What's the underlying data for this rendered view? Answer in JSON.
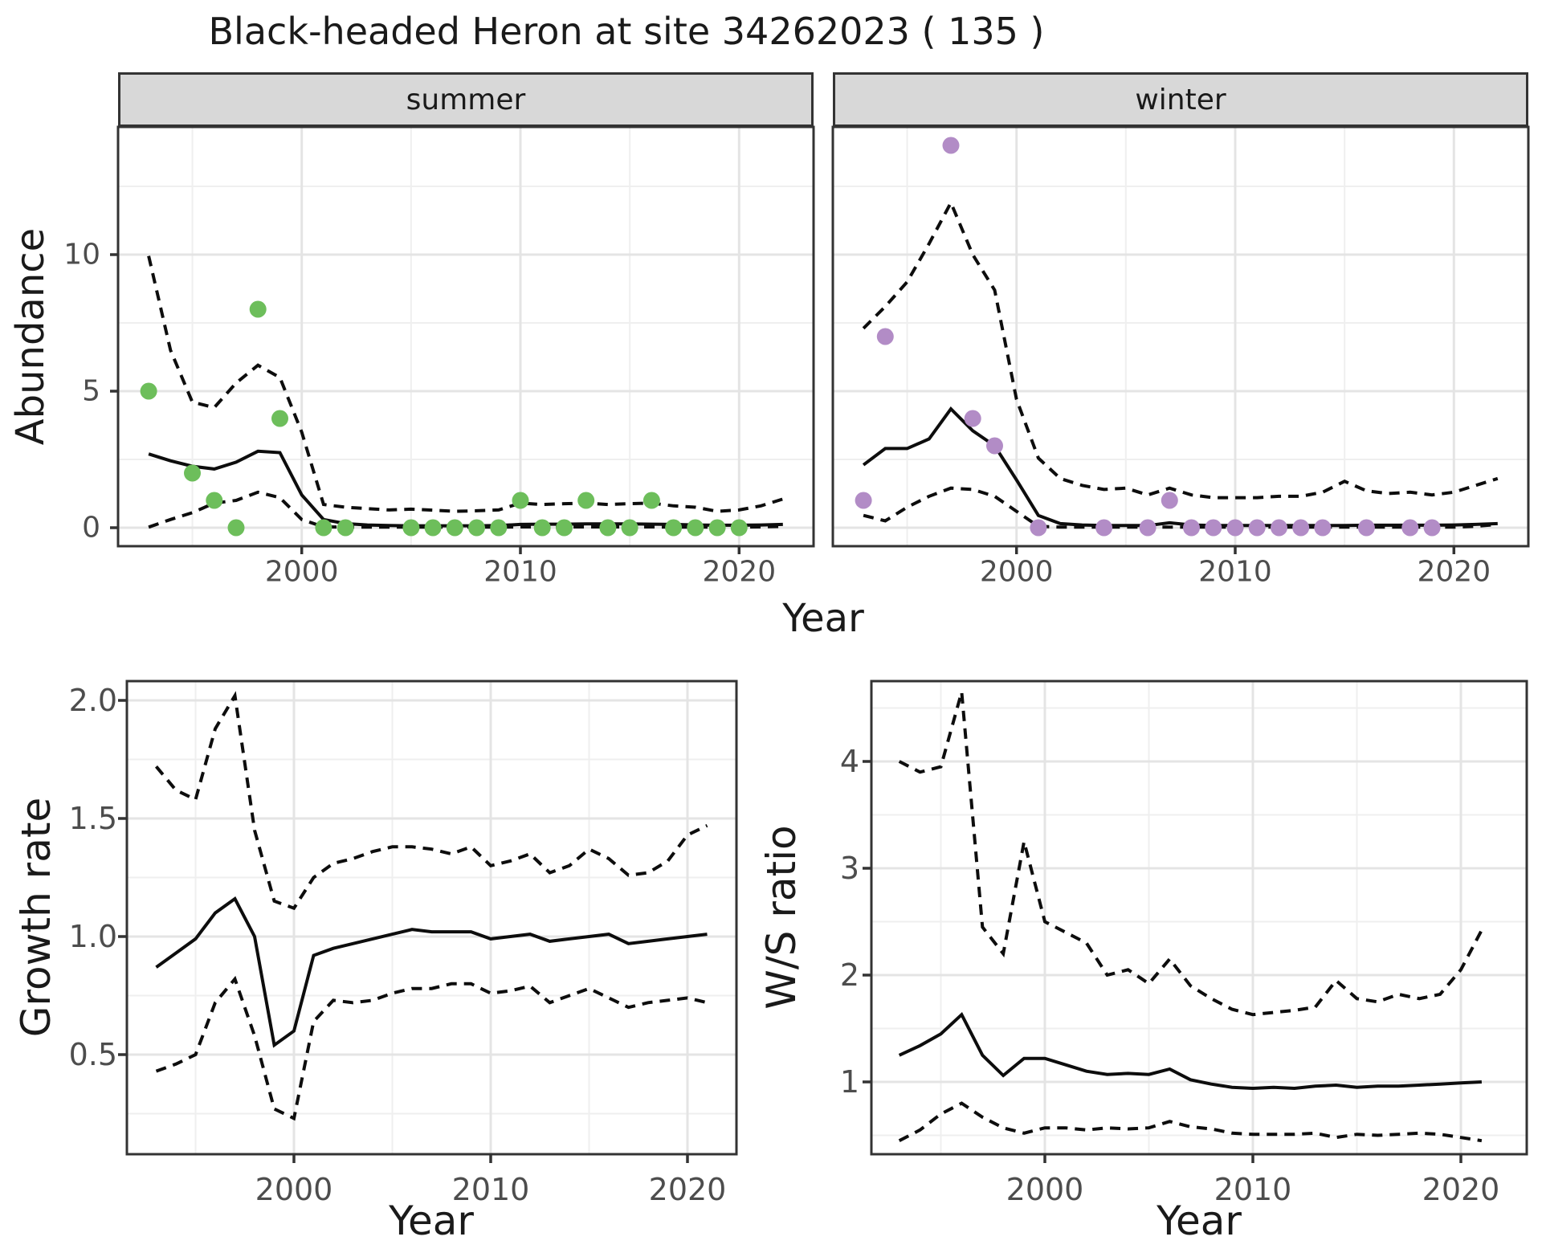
{
  "title": "Black-headed Heron at site 34262023 ( 135 )",
  "colors": {
    "summer_points": "#6DBE5B",
    "winter_points": "#B28CC6",
    "line": "#0d0d0d",
    "grid_major": "#e4e4e4",
    "grid_minor": "#efefef",
    "panel_border": "#333333",
    "strip_background": "#d8d8d8",
    "tick_label": "#4d4d4d",
    "tick_mark": "#333333",
    "text": "#1a1a1a",
    "panel_background": "#ffffff"
  },
  "chart_data": [
    {
      "id": "abundance-summer",
      "type": "line",
      "facet_label": "summer",
      "xlabel": "Year",
      "ylabel": "Abundance",
      "xlim": [
        1991.6,
        2023.4
      ],
      "ylim": [
        -0.7,
        14.7
      ],
      "x_ticks": {
        "major": [
          2000,
          2010,
          2020
        ],
        "minor": [
          1995,
          2005,
          2015
        ],
        "labels": [
          "2000",
          "2010",
          "2020"
        ]
      },
      "y_ticks": {
        "major": [
          0,
          5,
          10
        ],
        "minor": [
          2.5,
          7.5,
          12.5
        ],
        "labels": [
          "0",
          "5",
          "10"
        ]
      },
      "grid": true,
      "legend": "none",
      "series": [
        {
          "name": "fitted-abundance",
          "style": "solid",
          "x": [
            1993,
            1994,
            1995,
            1996,
            1997,
            1998,
            1999,
            2000,
            2001,
            2002,
            2003,
            2004,
            2005,
            2006,
            2007,
            2008,
            2009,
            2010,
            2011,
            2012,
            2013,
            2014,
            2015,
            2016,
            2017,
            2018,
            2019,
            2020,
            2021,
            2022
          ],
          "y": [
            2.7,
            2.45,
            2.25,
            2.15,
            2.4,
            2.8,
            2.75,
            1.2,
            0.3,
            0.15,
            0.1,
            0.08,
            0.07,
            0.07,
            0.07,
            0.07,
            0.08,
            0.12,
            0.13,
            0.13,
            0.14,
            0.14,
            0.14,
            0.13,
            0.12,
            0.1,
            0.09,
            0.09,
            0.1,
            0.12
          ]
        },
        {
          "name": "upper-credible-interval",
          "style": "dashed",
          "x": [
            1993,
            1994,
            1995,
            1996,
            1997,
            1998,
            1999,
            2000,
            2001,
            2002,
            2003,
            2004,
            2005,
            2006,
            2007,
            2008,
            2009,
            2010,
            2011,
            2012,
            2013,
            2014,
            2015,
            2016,
            2017,
            2018,
            2019,
            2020,
            2021,
            2022
          ],
          "y": [
            9.95,
            6.5,
            4.6,
            4.4,
            5.3,
            5.95,
            5.5,
            3.5,
            0.85,
            0.75,
            0.7,
            0.65,
            0.68,
            0.64,
            0.6,
            0.62,
            0.65,
            0.9,
            0.85,
            0.88,
            0.9,
            0.85,
            0.88,
            0.9,
            0.8,
            0.75,
            0.6,
            0.65,
            0.8,
            1.05
          ]
        },
        {
          "name": "lower-credible-interval",
          "style": "dashed",
          "x": [
            1993,
            1994,
            1995,
            1996,
            1997,
            1998,
            1999,
            2000,
            2001,
            2002,
            2003,
            2004,
            2005,
            2006,
            2007,
            2008,
            2009,
            2010,
            2011,
            2012,
            2013,
            2014,
            2015,
            2016,
            2017,
            2018,
            2019,
            2020,
            2021,
            2022
          ],
          "y": [
            0.02,
            0.3,
            0.55,
            0.9,
            1.0,
            1.3,
            1.1,
            0.3,
            0.03,
            0.02,
            0.02,
            0.02,
            0.02,
            0.02,
            0.02,
            0.02,
            0.02,
            0.03,
            0.03,
            0.03,
            0.03,
            0.03,
            0.03,
            0.03,
            0.02,
            0.02,
            0.02,
            0.02,
            0.03,
            0.05
          ]
        }
      ],
      "points": {
        "name": "observed-counts-summer",
        "color": "#6DBE5B",
        "x": [
          1993,
          1995,
          1996,
          1997,
          1998,
          1999,
          2001,
          2002,
          2005,
          2006,
          2007,
          2008,
          2009,
          2010,
          2011,
          2012,
          2013,
          2014,
          2015,
          2016,
          2017,
          2018,
          2019,
          2020
        ],
        "y": [
          5,
          2,
          1,
          0,
          8,
          4,
          0,
          0,
          0,
          0,
          0,
          0,
          0,
          1,
          0,
          0,
          1,
          0,
          0,
          1,
          0,
          0,
          0,
          0
        ]
      }
    },
    {
      "id": "abundance-winter",
      "type": "line",
      "facet_label": "winter",
      "xlabel": "Year",
      "ylabel": "Abundance",
      "xlim": [
        1991.6,
        2023.4
      ],
      "ylim": [
        -0.7,
        14.7
      ],
      "x_ticks": {
        "major": [
          2000,
          2010,
          2020
        ],
        "minor": [
          1995,
          2005,
          2015
        ],
        "labels": [
          "2000",
          "2010",
          "2020"
        ]
      },
      "y_ticks": {
        "major": [
          0,
          5,
          10
        ],
        "minor": [
          2.5,
          7.5,
          12.5
        ],
        "labels": []
      },
      "grid": true,
      "legend": "none",
      "series": [
        {
          "name": "fitted-abundance",
          "style": "solid",
          "x": [
            1993,
            1994,
            1995,
            1996,
            1997,
            1998,
            1999,
            2000,
            2001,
            2002,
            2003,
            2004,
            2005,
            2006,
            2007,
            2008,
            2009,
            2010,
            2011,
            2012,
            2013,
            2014,
            2015,
            2016,
            2017,
            2018,
            2019,
            2020,
            2021,
            2022
          ],
          "y": [
            2.3,
            2.9,
            2.9,
            3.25,
            4.35,
            3.55,
            3.0,
            1.75,
            0.45,
            0.15,
            0.1,
            0.08,
            0.08,
            0.08,
            0.18,
            0.1,
            0.08,
            0.08,
            0.08,
            0.08,
            0.08,
            0.08,
            0.08,
            0.09,
            0.09,
            0.09,
            0.09,
            0.1,
            0.12,
            0.15
          ]
        },
        {
          "name": "upper-credible-interval",
          "style": "dashed",
          "x": [
            1993,
            1994,
            1995,
            1996,
            1997,
            1998,
            1999,
            2000,
            2001,
            2002,
            2003,
            2004,
            2005,
            2006,
            2007,
            2008,
            2009,
            2010,
            2011,
            2012,
            2013,
            2014,
            2015,
            2016,
            2017,
            2018,
            2019,
            2020,
            2021,
            2022
          ],
          "y": [
            7.3,
            8.1,
            9.0,
            10.4,
            11.9,
            10.0,
            8.7,
            4.7,
            2.55,
            1.8,
            1.55,
            1.4,
            1.45,
            1.2,
            1.45,
            1.2,
            1.1,
            1.1,
            1.1,
            1.15,
            1.15,
            1.3,
            1.7,
            1.35,
            1.25,
            1.3,
            1.2,
            1.3,
            1.55,
            1.8
          ]
        },
        {
          "name": "lower-credible-interval",
          "style": "dashed",
          "x": [
            1993,
            1994,
            1995,
            1996,
            1997,
            1998,
            1999,
            2000,
            2001,
            2002,
            2003,
            2004,
            2005,
            2006,
            2007,
            2008,
            2009,
            2010,
            2011,
            2012,
            2013,
            2014,
            2015,
            2016,
            2017,
            2018,
            2019,
            2020,
            2021,
            2022
          ],
          "y": [
            0.45,
            0.25,
            0.75,
            1.15,
            1.45,
            1.4,
            1.15,
            0.6,
            0.05,
            0.02,
            0.02,
            0.02,
            0.02,
            0.02,
            0.02,
            0.02,
            0.02,
            0.02,
            0.02,
            0.02,
            0.02,
            0.02,
            0.02,
            0.02,
            0.02,
            0.02,
            0.02,
            0.02,
            0.05,
            0.12
          ]
        }
      ],
      "points": {
        "name": "observed-counts-winter",
        "color": "#B28CC6",
        "x": [
          1993,
          1994,
          1997,
          1998,
          1999,
          2001,
          2004,
          2006,
          2007,
          2008,
          2009,
          2010,
          2011,
          2012,
          2013,
          2014,
          2016,
          2018,
          2019
        ],
        "y": [
          1,
          7,
          14,
          4,
          3,
          0,
          0,
          0,
          1,
          0,
          0,
          0,
          0,
          0,
          0,
          0,
          0,
          0,
          0
        ]
      }
    },
    {
      "id": "growth-rate",
      "type": "line",
      "facet_label": "",
      "xlabel": "Year",
      "ylabel": "Growth rate",
      "xlim": [
        1991.5,
        2022.5
      ],
      "ylim": [
        0.08,
        2.08
      ],
      "x_ticks": {
        "major": [
          2000,
          2010,
          2020
        ],
        "minor": [
          1995,
          2005,
          2015
        ],
        "labels": [
          "2000",
          "2010",
          "2020"
        ]
      },
      "y_ticks": {
        "major": [
          0.5,
          1.0,
          1.5,
          2.0
        ],
        "minor": [
          0.25,
          0.75,
          1.25,
          1.75
        ],
        "labels": [
          "0.5",
          "1.0",
          "1.5",
          "2.0"
        ]
      },
      "grid": true,
      "legend": "none",
      "series": [
        {
          "name": "growth-rate-estimate",
          "style": "solid",
          "x": [
            1993,
            1994,
            1995,
            1996,
            1997,
            1998,
            1999,
            2000,
            2001,
            2002,
            2003,
            2004,
            2005,
            2006,
            2007,
            2008,
            2009,
            2010,
            2011,
            2012,
            2013,
            2014,
            2015,
            2016,
            2017,
            2018,
            2019,
            2020,
            2021
          ],
          "y": [
            0.87,
            0.93,
            0.99,
            1.1,
            1.16,
            1.0,
            0.54,
            0.6,
            0.92,
            0.95,
            0.97,
            0.99,
            1.01,
            1.03,
            1.02,
            1.02,
            1.02,
            0.99,
            1.0,
            1.01,
            0.98,
            0.99,
            1.0,
            1.01,
            0.97,
            0.98,
            0.99,
            1.0,
            1.01
          ]
        },
        {
          "name": "upper-credible-interval",
          "style": "dashed",
          "x": [
            1993,
            1994,
            1995,
            1996,
            1997,
            1998,
            1999,
            2000,
            2001,
            2002,
            2003,
            2004,
            2005,
            2006,
            2007,
            2008,
            2009,
            2010,
            2011,
            2012,
            2013,
            2014,
            2015,
            2016,
            2017,
            2018,
            2019,
            2020,
            2021
          ],
          "y": [
            1.72,
            1.62,
            1.58,
            1.88,
            2.02,
            1.45,
            1.15,
            1.12,
            1.25,
            1.31,
            1.33,
            1.36,
            1.38,
            1.38,
            1.37,
            1.35,
            1.38,
            1.3,
            1.32,
            1.35,
            1.27,
            1.3,
            1.37,
            1.33,
            1.26,
            1.27,
            1.32,
            1.43,
            1.47
          ]
        },
        {
          "name": "lower-credible-interval",
          "style": "dashed",
          "x": [
            1993,
            1994,
            1995,
            1996,
            1997,
            1998,
            1999,
            2000,
            2001,
            2002,
            2003,
            2004,
            2005,
            2006,
            2007,
            2008,
            2009,
            2010,
            2011,
            2012,
            2013,
            2014,
            2015,
            2016,
            2017,
            2018,
            2019,
            2020,
            2021
          ],
          "y": [
            0.43,
            0.46,
            0.5,
            0.72,
            0.82,
            0.58,
            0.27,
            0.23,
            0.64,
            0.73,
            0.72,
            0.73,
            0.76,
            0.78,
            0.78,
            0.8,
            0.8,
            0.76,
            0.77,
            0.79,
            0.72,
            0.75,
            0.78,
            0.74,
            0.7,
            0.72,
            0.73,
            0.74,
            0.72
          ]
        }
      ],
      "points": null
    },
    {
      "id": "ws-ratio",
      "type": "line",
      "facet_label": "",
      "xlabel": "Year",
      "ylabel": "W/S ratio",
      "xlim": [
        1991.7,
        2023.0
      ],
      "ylim": [
        0.33,
        4.75
      ],
      "x_ticks": {
        "major": [
          2000,
          2010,
          2020
        ],
        "minor": [
          1995,
          2005,
          2015
        ],
        "labels": [
          "2000",
          "2010",
          "2020"
        ]
      },
      "y_ticks": {
        "major": [
          1,
          2,
          3,
          4
        ],
        "minor": [
          0.5,
          1.5,
          2.5,
          3.5,
          4.5
        ],
        "labels": [
          "1",
          "2",
          "3",
          "4"
        ]
      },
      "grid": true,
      "legend": "none",
      "series": [
        {
          "name": "ws-ratio-estimate",
          "style": "solid",
          "x": [
            1993,
            1994,
            1995,
            1996,
            1997,
            1998,
            1999,
            2000,
            2001,
            2002,
            2003,
            2004,
            2005,
            2006,
            2007,
            2008,
            2009,
            2010,
            2011,
            2012,
            2013,
            2014,
            2015,
            2016,
            2017,
            2018,
            2019,
            2020,
            2021
          ],
          "y": [
            1.25,
            1.34,
            1.45,
            1.63,
            1.25,
            1.06,
            1.22,
            1.22,
            1.16,
            1.1,
            1.07,
            1.08,
            1.07,
            1.12,
            1.02,
            0.98,
            0.95,
            0.94,
            0.95,
            0.94,
            0.96,
            0.97,
            0.95,
            0.96,
            0.96,
            0.97,
            0.98,
            0.99,
            1.0
          ]
        },
        {
          "name": "upper-credible-interval",
          "style": "dashed",
          "x": [
            1993,
            1994,
            1995,
            1996,
            1997,
            1998,
            1999,
            2000,
            2001,
            2002,
            2003,
            2004,
            2005,
            2006,
            2007,
            2008,
            2009,
            2010,
            2011,
            2012,
            2013,
            2014,
            2015,
            2016,
            2017,
            2018,
            2019,
            2020,
            2021
          ],
          "y": [
            4.0,
            3.9,
            3.95,
            4.65,
            2.45,
            2.2,
            3.25,
            2.5,
            2.4,
            2.3,
            2.0,
            2.05,
            1.92,
            2.15,
            1.9,
            1.78,
            1.68,
            1.63,
            1.65,
            1.67,
            1.7,
            1.95,
            1.78,
            1.75,
            1.82,
            1.78,
            1.82,
            2.05,
            2.42
          ]
        },
        {
          "name": "lower-credible-interval",
          "style": "dashed",
          "x": [
            1993,
            1994,
            1995,
            1996,
            1997,
            1998,
            1999,
            2000,
            2001,
            2002,
            2003,
            2004,
            2005,
            2006,
            2007,
            2008,
            2009,
            2010,
            2011,
            2012,
            2013,
            2014,
            2015,
            2016,
            2017,
            2018,
            2019,
            2020,
            2021
          ],
          "y": [
            0.45,
            0.55,
            0.7,
            0.8,
            0.67,
            0.57,
            0.52,
            0.57,
            0.57,
            0.55,
            0.57,
            0.56,
            0.57,
            0.63,
            0.58,
            0.56,
            0.52,
            0.51,
            0.51,
            0.51,
            0.52,
            0.48,
            0.51,
            0.5,
            0.51,
            0.52,
            0.51,
            0.48,
            0.45
          ]
        }
      ],
      "points": null
    }
  ]
}
